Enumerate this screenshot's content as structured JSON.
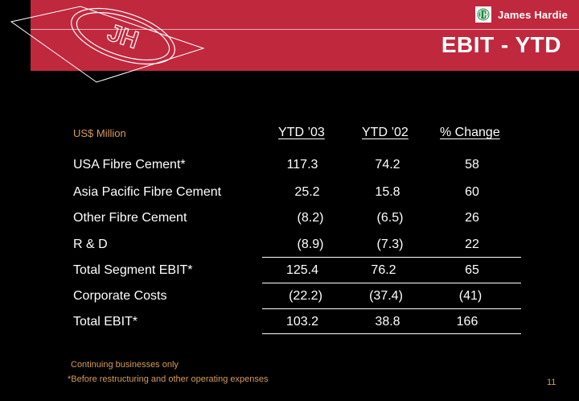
{
  "header": {
    "company": "James Hardie",
    "title": "EBIT - YTD",
    "logo_letters": "JH",
    "accent_color": "#c0283e"
  },
  "table": {
    "units_label": "US$ Million",
    "columns": [
      "YTD ’03",
      "YTD ’02",
      "% Change"
    ],
    "rows": [
      {
        "label": "USA Fibre Cement*",
        "values": [
          "117.3",
          "74.2",
          "58"
        ]
      },
      {
        "label": "Asia Pacific Fibre Cement",
        "values": [
          "25.2",
          "15.8",
          "60"
        ]
      },
      {
        "label": "Other Fibre Cement",
        "values": [
          "(8.2)",
          "(6.5)",
          "26"
        ]
      },
      {
        "label": "R & D",
        "values": [
          "(8.9)",
          "(7.3)",
          "22"
        ]
      },
      {
        "label": "Total Segment EBIT*",
        "values": [
          "125.4",
          "76.2",
          "65"
        ]
      },
      {
        "label": "Corporate Costs",
        "values": [
          "(22.2)",
          "(37.4)",
          "(41)"
        ]
      },
      {
        "label": "Total EBIT*",
        "values": [
          "103.2",
          "38.8",
          "166"
        ]
      }
    ]
  },
  "footnotes": {
    "note1": "Continuing businesses only",
    "note2": "*Before restructuring and other operating expenses"
  },
  "page_number": "11"
}
